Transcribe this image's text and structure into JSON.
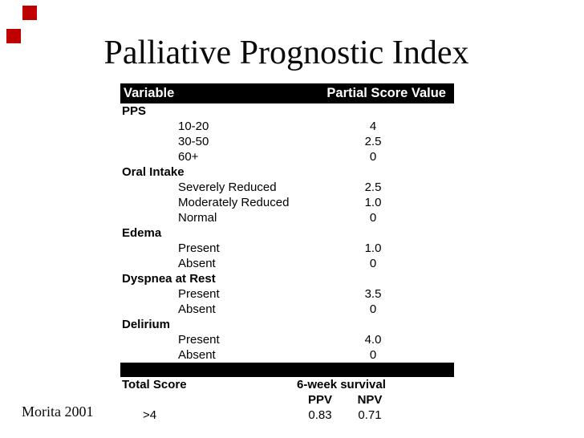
{
  "slide": {
    "title": "Palliative Prognostic Index",
    "citation": "Morita 2001",
    "accent_color": "#c00000",
    "decoration": [
      "red-square",
      "red-square"
    ]
  },
  "table": {
    "header": {
      "variable": "Variable",
      "score": "Partial Score Value"
    },
    "rows": [
      {
        "type": "category",
        "label": "PPS",
        "value": ""
      },
      {
        "type": "item",
        "label": "10-20",
        "value": "4"
      },
      {
        "type": "item",
        "label": "30-50",
        "value": "2.5"
      },
      {
        "type": "item",
        "label": "60+",
        "value": "0"
      },
      {
        "type": "category",
        "label": "Oral Intake",
        "value": ""
      },
      {
        "type": "item",
        "label": "Severely Reduced",
        "value": "2.5"
      },
      {
        "type": "item",
        "label": "Moderately Reduced",
        "value": "1.0"
      },
      {
        "type": "item",
        "label": "Normal",
        "value": "0"
      },
      {
        "type": "category",
        "label": "Edema",
        "value": ""
      },
      {
        "type": "item",
        "label": "Present",
        "value": "1.0"
      },
      {
        "type": "item",
        "label": "Absent",
        "value": "0"
      },
      {
        "type": "category",
        "label": "Dyspnea at Rest",
        "value": ""
      },
      {
        "type": "item",
        "label": "Present",
        "value": "3.5"
      },
      {
        "type": "item",
        "label": "Absent",
        "value": "0"
      },
      {
        "type": "category",
        "label": "Delirium",
        "value": ""
      },
      {
        "type": "item",
        "label": "Present",
        "value": "4.0"
      },
      {
        "type": "item",
        "label": "Absent",
        "value": "0"
      }
    ],
    "footer": {
      "total_score_label": "Total Score",
      "survival_label": "6-week survival",
      "ppv_label": "PPV",
      "npv_label": "NPV",
      "rows": [
        {
          "total_score": ">4",
          "ppv": "0.83",
          "npv": "0.71"
        }
      ]
    }
  }
}
